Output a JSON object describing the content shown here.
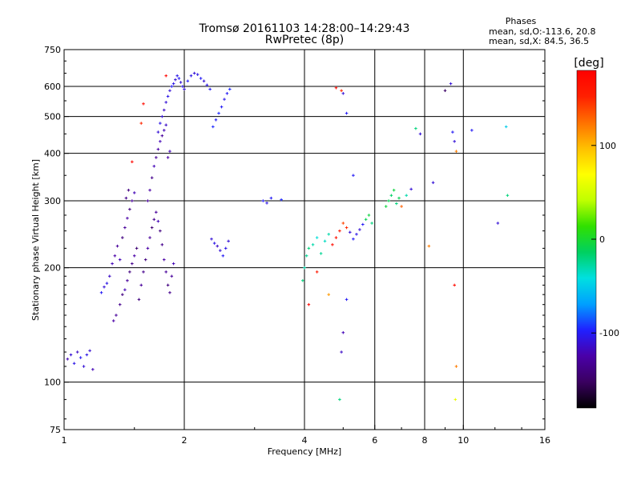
{
  "chart_data": {
    "type": "scatter",
    "title": "Tromsø 20161103 14:28:00–14:29:43",
    "subtitle": "RwPretec (8p)",
    "stats": {
      "heading": "Phases",
      "line_o": "mean, sd,O:-113.6, 20.8",
      "line_x": "mean, sd,X:  84.5, 36.5"
    },
    "xlabel": "Frequency [MHz]",
    "ylabel": "Stationary phase Virtual Height [km]",
    "x_scale": "log",
    "y_scale": "log",
    "xlim": [
      1,
      16
    ],
    "ylim": [
      75,
      750
    ],
    "x_ticks": [
      {
        "value": 1,
        "label": "1"
      },
      {
        "value": 2,
        "label": "2"
      },
      {
        "value": 4,
        "label": "4"
      },
      {
        "value": 6,
        "label": "6"
      },
      {
        "value": 8,
        "label": "8"
      },
      {
        "value": 10,
        "label": "10"
      },
      {
        "value": 16,
        "label": "16"
      }
    ],
    "x_gridlines": [
      2,
      4,
      6,
      8,
      10
    ],
    "y_ticks": [
      {
        "value": 75,
        "label": "75"
      },
      {
        "value": 100,
        "label": "100"
      },
      {
        "value": 200,
        "label": "200"
      },
      {
        "value": 300,
        "label": "300"
      },
      {
        "value": 400,
        "label": "400"
      },
      {
        "value": 500,
        "label": "500"
      },
      {
        "value": 600,
        "label": "600"
      },
      {
        "value": 750,
        "label": "750"
      }
    ],
    "y_gridlines": [
      100,
      200,
      300,
      400,
      500,
      600
    ],
    "grid": true,
    "colorbar": {
      "label": "[deg]",
      "range": [
        -180,
        180
      ],
      "ticks": [
        {
          "value": 100,
          "label": "100"
        },
        {
          "value": 0,
          "label": "0"
        },
        {
          "value": -100,
          "label": "-100"
        }
      ],
      "colors": [
        "#000000",
        "#3a0060",
        "#4a00a8",
        "#2020ff",
        "#00a0ff",
        "#00e0e0",
        "#00d060",
        "#30e000",
        "#c0ff00",
        "#ffff00",
        "#ffc000",
        "#ff7000",
        "#ff2000",
        "#ff0000"
      ]
    },
    "series": [
      {
        "values": [
          [
            1.02,
            115,
            -120
          ],
          [
            1.04,
            118,
            -110
          ],
          [
            1.06,
            112,
            -105
          ],
          [
            1.08,
            120,
            -115
          ],
          [
            1.1,
            116,
            -100
          ],
          [
            1.12,
            110,
            -110
          ],
          [
            1.14,
            118,
            -105
          ],
          [
            1.16,
            121,
            -112
          ],
          [
            1.18,
            108,
            -120
          ],
          [
            1.24,
            172,
            -100
          ],
          [
            1.26,
            178,
            -110
          ],
          [
            1.28,
            182,
            -105
          ],
          [
            1.3,
            190,
            -115
          ],
          [
            1.32,
            205,
            -120
          ],
          [
            1.34,
            215,
            -125
          ],
          [
            1.36,
            228,
            -130
          ],
          [
            1.38,
            210,
            -120
          ],
          [
            1.33,
            145,
            -125
          ],
          [
            1.35,
            150,
            -130
          ],
          [
            1.38,
            160,
            -135
          ],
          [
            1.4,
            170,
            -140
          ],
          [
            1.42,
            175,
            -120
          ],
          [
            1.44,
            185,
            -130
          ],
          [
            1.46,
            195,
            -140
          ],
          [
            1.48,
            205,
            -135
          ],
          [
            1.5,
            215,
            -125
          ],
          [
            1.52,
            225,
            -145
          ],
          [
            1.4,
            240,
            -140
          ],
          [
            1.42,
            255,
            -130
          ],
          [
            1.44,
            270,
            -125
          ],
          [
            1.46,
            285,
            -140
          ],
          [
            1.48,
            300,
            -130
          ],
          [
            1.5,
            315,
            -120
          ],
          [
            1.43,
            305,
            -135
          ],
          [
            1.45,
            320,
            -140
          ],
          [
            1.54,
            165,
            -140
          ],
          [
            1.56,
            180,
            -130
          ],
          [
            1.58,
            195,
            -135
          ],
          [
            1.6,
            210,
            -140
          ],
          [
            1.62,
            225,
            -125
          ],
          [
            1.64,
            240,
            -130
          ],
          [
            1.66,
            255,
            -145
          ],
          [
            1.68,
            268,
            -135
          ],
          [
            1.7,
            280,
            -130
          ],
          [
            1.72,
            265,
            -120
          ],
          [
            1.74,
            250,
            -140
          ],
          [
            1.76,
            230,
            -135
          ],
          [
            1.78,
            210,
            -125
          ],
          [
            1.8,
            195,
            -130
          ],
          [
            1.82,
            180,
            -140
          ],
          [
            1.84,
            172,
            -135
          ],
          [
            1.86,
            190,
            -130
          ],
          [
            1.88,
            205,
            -120
          ],
          [
            1.62,
            300,
            -130
          ],
          [
            1.64,
            320,
            -125
          ],
          [
            1.66,
            345,
            -135
          ],
          [
            1.68,
            370,
            -120
          ],
          [
            1.7,
            390,
            -130
          ],
          [
            1.72,
            410,
            -125
          ],
          [
            1.74,
            430,
            -120
          ],
          [
            1.76,
            445,
            -130
          ],
          [
            1.78,
            460,
            -120
          ],
          [
            1.8,
            475,
            -115
          ],
          [
            1.82,
            390,
            -125
          ],
          [
            1.84,
            405,
            -120
          ],
          [
            1.72,
            455,
            -110
          ],
          [
            1.74,
            480,
            -105
          ],
          [
            1.76,
            500,
            -110
          ],
          [
            1.78,
            520,
            -115
          ],
          [
            1.8,
            545,
            -110
          ],
          [
            1.82,
            565,
            -105
          ],
          [
            1.84,
            585,
            -110
          ],
          [
            1.86,
            600,
            -100
          ],
          [
            1.88,
            610,
            -105
          ],
          [
            1.9,
            625,
            -110
          ],
          [
            1.92,
            640,
            -105
          ],
          [
            1.94,
            630,
            -100
          ],
          [
            1.96,
            615,
            -110
          ],
          [
            1.98,
            600,
            -105
          ],
          [
            2.0,
            590,
            -110
          ],
          [
            2.04,
            620,
            -100
          ],
          [
            2.08,
            640,
            -105
          ],
          [
            2.12,
            650,
            -110
          ],
          [
            2.16,
            645,
            -105
          ],
          [
            2.2,
            630,
            -100
          ],
          [
            2.24,
            620,
            -110
          ],
          [
            2.28,
            605,
            -105
          ],
          [
            2.32,
            590,
            -100
          ],
          [
            2.36,
            470,
            -95
          ],
          [
            2.4,
            490,
            -100
          ],
          [
            2.44,
            510,
            -95
          ],
          [
            2.48,
            530,
            -100
          ],
          [
            2.52,
            555,
            -105
          ],
          [
            2.56,
            575,
            -100
          ],
          [
            2.6,
            590,
            -95
          ],
          [
            1.56,
            480,
            150
          ],
          [
            1.58,
            540,
            170
          ],
          [
            1.8,
            640,
            175
          ],
          [
            1.48,
            380,
            175
          ],
          [
            2.34,
            238,
            -110
          ],
          [
            2.38,
            232,
            -105
          ],
          [
            2.42,
            228,
            -115
          ],
          [
            2.46,
            222,
            -110
          ],
          [
            2.5,
            215,
            -100
          ],
          [
            2.54,
            225,
            -105
          ],
          [
            2.58,
            235,
            -110
          ],
          [
            3.15,
            300,
            -100
          ],
          [
            3.22,
            296,
            -105
          ],
          [
            3.3,
            305,
            -100
          ],
          [
            3.5,
            302,
            -95
          ],
          [
            3.96,
            185,
            -20
          ],
          [
            4.0,
            200,
            -30
          ],
          [
            4.05,
            215,
            -25
          ],
          [
            4.1,
            225,
            -20
          ],
          [
            4.2,
            230,
            -30
          ],
          [
            4.3,
            240,
            -40
          ],
          [
            4.4,
            218,
            -25
          ],
          [
            4.5,
            235,
            -35
          ],
          [
            4.6,
            245,
            -30
          ],
          [
            4.7,
            230,
            170
          ],
          [
            4.8,
            240,
            165
          ],
          [
            4.9,
            250,
            160
          ],
          [
            5.0,
            262,
            140
          ],
          [
            5.1,
            255,
            150
          ],
          [
            5.2,
            248,
            -110
          ],
          [
            5.3,
            238,
            -100
          ],
          [
            5.4,
            245,
            -105
          ],
          [
            5.5,
            252,
            -110
          ],
          [
            5.6,
            260,
            -100
          ],
          [
            5.7,
            268,
            -10
          ],
          [
            5.8,
            275,
            -5
          ],
          [
            5.9,
            262,
            -20
          ],
          [
            4.1,
            160,
            175
          ],
          [
            4.3,
            195,
            160
          ],
          [
            4.6,
            170,
            110
          ],
          [
            4.95,
            120,
            -115
          ],
          [
            5.0,
            135,
            -120
          ],
          [
            5.1,
            165,
            -100
          ],
          [
            5.3,
            350,
            -100
          ],
          [
            4.8,
            595,
            170
          ],
          [
            4.95,
            585,
            150
          ],
          [
            5.0,
            575,
            -110
          ],
          [
            5.1,
            510,
            -100
          ],
          [
            4.9,
            90,
            -20
          ],
          [
            6.4,
            290,
            -5
          ],
          [
            6.5,
            300,
            -10
          ],
          [
            6.6,
            310,
            -15
          ],
          [
            6.7,
            320,
            -5
          ],
          [
            6.8,
            295,
            -20
          ],
          [
            6.9,
            305,
            -10
          ],
          [
            7.0,
            290,
            130
          ],
          [
            7.2,
            310,
            -30
          ],
          [
            7.4,
            322,
            -110
          ],
          [
            7.6,
            465,
            -20
          ],
          [
            7.8,
            450,
            -110
          ],
          [
            8.2,
            228,
            120
          ],
          [
            8.4,
            335,
            -110
          ],
          [
            9.0,
            585,
            -150
          ],
          [
            9.3,
            610,
            -110
          ],
          [
            9.4,
            455,
            -100
          ],
          [
            9.5,
            430,
            -110
          ],
          [
            9.6,
            405,
            120
          ],
          [
            9.5,
            180,
            170
          ],
          [
            9.6,
            110,
            120
          ],
          [
            9.55,
            90,
            60
          ],
          [
            10.5,
            460,
            -100
          ],
          [
            12.8,
            470,
            -50
          ],
          [
            12.9,
            310,
            -20
          ],
          [
            12.2,
            262,
            -110
          ]
        ]
      }
    ]
  }
}
